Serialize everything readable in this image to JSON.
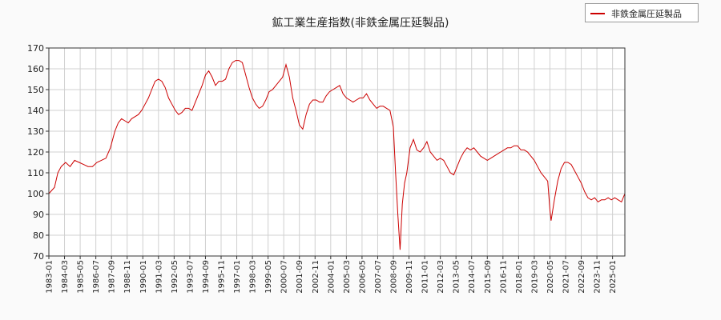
{
  "chart_data": {
    "type": "line",
    "title": "鉱工業生産指数(非鉄金属圧延製品)",
    "xlabel": "",
    "ylabel": "",
    "ylim": [
      70,
      170
    ],
    "yticks": [
      70,
      80,
      90,
      100,
      110,
      120,
      130,
      140,
      150,
      160,
      170
    ],
    "xlim": [
      "1983-01",
      "2025-12"
    ],
    "xtick_labels": [
      "1983-01",
      "1984-03",
      "1985-05",
      "1986-07",
      "1987-09",
      "1988-11",
      "1990-01",
      "1991-03",
      "1992-05",
      "1993-07",
      "1994-09",
      "1995-11",
      "1997-01",
      "1998-03",
      "1999-05",
      "2000-07",
      "2001-09",
      "2002-11",
      "2004-01",
      "2005-03",
      "2006-05",
      "2007-07",
      "2008-09",
      "2009-11",
      "2011-01",
      "2012-03",
      "2013-05",
      "2014-07",
      "2015-09",
      "2016-11",
      "2018-01",
      "2019-03",
      "2020-05",
      "2021-07",
      "2022-09",
      "2023-11",
      "2025-01"
    ],
    "grid": true,
    "legend_position": "top-right",
    "series": [
      {
        "name": "非鉄金属圧延製品",
        "color": "#cc0000",
        "points": [
          [
            "1983-01",
            100
          ],
          [
            "1983-06",
            103
          ],
          [
            "1983-09",
            110
          ],
          [
            "1983-12",
            113
          ],
          [
            "1984-04",
            115
          ],
          [
            "1984-08",
            113
          ],
          [
            "1984-12",
            116
          ],
          [
            "1985-04",
            115
          ],
          [
            "1985-08",
            114
          ],
          [
            "1985-12",
            113
          ],
          [
            "1986-04",
            113
          ],
          [
            "1986-08",
            115
          ],
          [
            "1986-12",
            116
          ],
          [
            "1987-04",
            117
          ],
          [
            "1987-08",
            122
          ],
          [
            "1987-12",
            130
          ],
          [
            "1988-03",
            134
          ],
          [
            "1988-06",
            136
          ],
          [
            "1988-09",
            135
          ],
          [
            "1988-12",
            134
          ],
          [
            "1989-03",
            136
          ],
          [
            "1989-06",
            137
          ],
          [
            "1989-09",
            138
          ],
          [
            "1989-12",
            140
          ],
          [
            "1990-03",
            143
          ],
          [
            "1990-06",
            146
          ],
          [
            "1990-09",
            150
          ],
          [
            "1990-12",
            154
          ],
          [
            "1991-03",
            155
          ],
          [
            "1991-06",
            154
          ],
          [
            "1991-09",
            151
          ],
          [
            "1991-12",
            146
          ],
          [
            "1992-03",
            143
          ],
          [
            "1992-06",
            140
          ],
          [
            "1992-09",
            138
          ],
          [
            "1992-12",
            139
          ],
          [
            "1993-03",
            141
          ],
          [
            "1993-06",
            141
          ],
          [
            "1993-09",
            140
          ],
          [
            "1993-12",
            144
          ],
          [
            "1994-03",
            148
          ],
          [
            "1994-06",
            152
          ],
          [
            "1994-09",
            157
          ],
          [
            "1994-12",
            159
          ],
          [
            "1995-03",
            156
          ],
          [
            "1995-06",
            152
          ],
          [
            "1995-09",
            154
          ],
          [
            "1995-12",
            154
          ],
          [
            "1996-03",
            155
          ],
          [
            "1996-06",
            160
          ],
          [
            "1996-09",
            163
          ],
          [
            "1996-12",
            164
          ],
          [
            "1997-03",
            164
          ],
          [
            "1997-06",
            163
          ],
          [
            "1997-09",
            157
          ],
          [
            "1997-12",
            151
          ],
          [
            "1998-03",
            146
          ],
          [
            "1998-06",
            143
          ],
          [
            "1998-09",
            141
          ],
          [
            "1998-12",
            142
          ],
          [
            "1999-03",
            145
          ],
          [
            "1999-06",
            149
          ],
          [
            "1999-09",
            150
          ],
          [
            "1999-12",
            152
          ],
          [
            "2000-03",
            154
          ],
          [
            "2000-06",
            156
          ],
          [
            "2000-09",
            162
          ],
          [
            "2000-12",
            156
          ],
          [
            "2001-03",
            146
          ],
          [
            "2001-06",
            140
          ],
          [
            "2001-09",
            133
          ],
          [
            "2001-12",
            131
          ],
          [
            "2002-03",
            138
          ],
          [
            "2002-06",
            143
          ],
          [
            "2002-09",
            145
          ],
          [
            "2002-12",
            145
          ],
          [
            "2003-03",
            144
          ],
          [
            "2003-06",
            144
          ],
          [
            "2003-09",
            147
          ],
          [
            "2003-12",
            149
          ],
          [
            "2004-03",
            150
          ],
          [
            "2004-06",
            151
          ],
          [
            "2004-09",
            152
          ],
          [
            "2004-12",
            148
          ],
          [
            "2005-03",
            146
          ],
          [
            "2005-06",
            145
          ],
          [
            "2005-09",
            144
          ],
          [
            "2005-12",
            145
          ],
          [
            "2006-03",
            146
          ],
          [
            "2006-06",
            146
          ],
          [
            "2006-09",
            148
          ],
          [
            "2006-12",
            145
          ],
          [
            "2007-03",
            143
          ],
          [
            "2007-06",
            141
          ],
          [
            "2007-09",
            142
          ],
          [
            "2007-12",
            142
          ],
          [
            "2008-03",
            141
          ],
          [
            "2008-06",
            140
          ],
          [
            "2008-09",
            132
          ],
          [
            "2008-11",
            110
          ],
          [
            "2009-01",
            90
          ],
          [
            "2009-03",
            73
          ],
          [
            "2009-05",
            95
          ],
          [
            "2009-07",
            105
          ],
          [
            "2009-09",
            110
          ],
          [
            "2009-12",
            122
          ],
          [
            "2010-03",
            126
          ],
          [
            "2010-06",
            121
          ],
          [
            "2010-09",
            120
          ],
          [
            "2010-12",
            122
          ],
          [
            "2011-03",
            125
          ],
          [
            "2011-06",
            120
          ],
          [
            "2011-09",
            118
          ],
          [
            "2011-12",
            116
          ],
          [
            "2012-03",
            117
          ],
          [
            "2012-06",
            116
          ],
          [
            "2012-09",
            113
          ],
          [
            "2012-12",
            110
          ],
          [
            "2013-03",
            109
          ],
          [
            "2013-06",
            113
          ],
          [
            "2013-09",
            117
          ],
          [
            "2013-12",
            120
          ],
          [
            "2014-03",
            122
          ],
          [
            "2014-06",
            121
          ],
          [
            "2014-09",
            122
          ],
          [
            "2014-12",
            120
          ],
          [
            "2015-03",
            118
          ],
          [
            "2015-06",
            117
          ],
          [
            "2015-09",
            116
          ],
          [
            "2015-12",
            117
          ],
          [
            "2016-03",
            118
          ],
          [
            "2016-06",
            119
          ],
          [
            "2016-09",
            120
          ],
          [
            "2016-12",
            121
          ],
          [
            "2017-03",
            122
          ],
          [
            "2017-06",
            122
          ],
          [
            "2017-09",
            123
          ],
          [
            "2017-12",
            123
          ],
          [
            "2018-03",
            121
          ],
          [
            "2018-06",
            121
          ],
          [
            "2018-09",
            120
          ],
          [
            "2018-12",
            118
          ],
          [
            "2019-03",
            116
          ],
          [
            "2019-06",
            113
          ],
          [
            "2019-09",
            110
          ],
          [
            "2019-12",
            108
          ],
          [
            "2020-03",
            106
          ],
          [
            "2020-05",
            92
          ],
          [
            "2020-06",
            87
          ],
          [
            "2020-09",
            97
          ],
          [
            "2020-12",
            106
          ],
          [
            "2021-03",
            112
          ],
          [
            "2021-06",
            115
          ],
          [
            "2021-09",
            115
          ],
          [
            "2021-12",
            114
          ],
          [
            "2022-03",
            111
          ],
          [
            "2022-06",
            108
          ],
          [
            "2022-09",
            105
          ],
          [
            "2022-12",
            101
          ],
          [
            "2023-03",
            98
          ],
          [
            "2023-06",
            97
          ],
          [
            "2023-09",
            98
          ],
          [
            "2023-12",
            96
          ],
          [
            "2024-03",
            97
          ],
          [
            "2024-06",
            97
          ],
          [
            "2024-09",
            98
          ],
          [
            "2024-12",
            97
          ],
          [
            "2025-03",
            98
          ],
          [
            "2025-06",
            97
          ],
          [
            "2025-09",
            96
          ],
          [
            "2025-12",
            100
          ]
        ]
      }
    ]
  }
}
